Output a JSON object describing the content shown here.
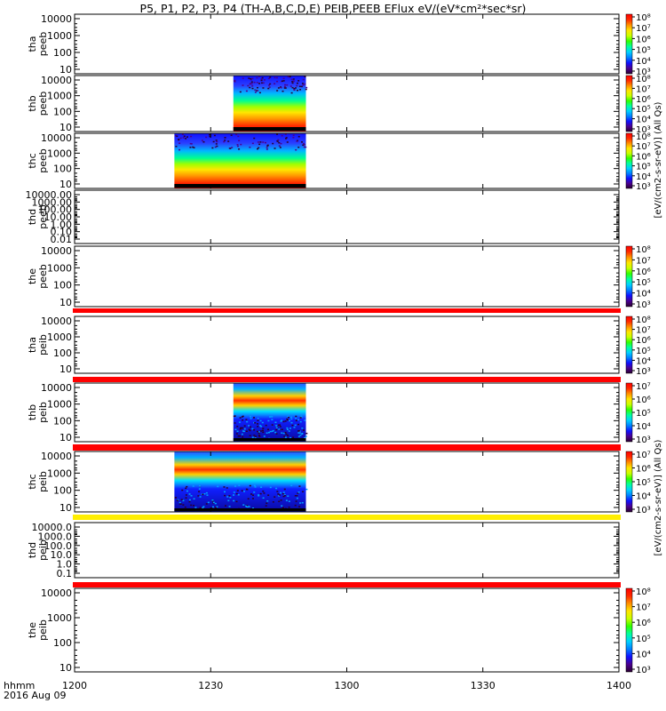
{
  "title": "P5, P1, P2, P3, P4 (TH-A,B,C,D,E) PEIB,PEEB EFlux eV/(eV*cm²*sec*sr)",
  "footer": {
    "time_label": "hhmm",
    "date": "2016 Aug 09"
  },
  "cbar_label_upper": "[eV/(cm2-s-sr-eV)] (All Qs)",
  "cbar_label_lower": "[eV/(cm2-s-sr-eV)] (All Qs)",
  "chart_data": {
    "type": "heatmap",
    "x_axis": {
      "ticks": [
        "1200",
        "1230",
        "1300",
        "1330",
        "1400"
      ],
      "range": [
        "12:00",
        "14:00"
      ]
    },
    "colormap": [
      "#2a0030",
      "#4a0090",
      "#1010ff",
      "#0080ff",
      "#00d0ff",
      "#00ffa0",
      "#30ff00",
      "#c8ff00",
      "#ffe600",
      "#ff9000",
      "#ff2a00",
      "#ff0000"
    ],
    "panels": [
      {
        "ylabel": [
          "tha",
          "peeb"
        ],
        "yticks": [
          "10000",
          "1000",
          "100",
          "10"
        ],
        "ylog": true,
        "cbar_ticks": [
          "10⁸",
          "10⁷",
          "10⁶",
          "10⁵",
          "10⁴",
          "10³"
        ],
        "data_blocks": [],
        "stripe_below": null
      },
      {
        "ylabel": [
          "thb",
          "peeb"
        ],
        "yticks": [
          "10000",
          "1000",
          "100",
          "10"
        ],
        "ylog": true,
        "cbar_ticks": [
          "10⁸",
          "10⁷",
          "10⁶",
          "10⁵",
          "10⁴",
          "10³"
        ],
        "data_blocks": [
          {
            "start": "12:35",
            "end": "12:51",
            "kind": "electron"
          }
        ],
        "stripe_below": null
      },
      {
        "ylabel": [
          "thc",
          "peeb"
        ],
        "yticks": [
          "10000",
          "1000",
          "100",
          "10"
        ],
        "ylog": true,
        "cbar_ticks": [
          "10⁸",
          "10⁷",
          "10⁶",
          "10⁵",
          "10⁴",
          "10³"
        ],
        "data_blocks": [
          {
            "start": "12:22",
            "end": "12:51",
            "kind": "electron"
          }
        ],
        "stripe_below": null
      },
      {
        "ylabel": [
          "thd",
          "peeb"
        ],
        "yticks": [
          "10000.00",
          "1000.00",
          "100.00",
          "10.00",
          "1.00",
          "0.10",
          "0.01"
        ],
        "ylog": true,
        "cbar_ticks": [],
        "data_blocks": [],
        "stripe_below": null
      },
      {
        "ylabel": [
          "the",
          "peeb"
        ],
        "yticks": [
          "10000",
          "1000",
          "100",
          "10"
        ],
        "ylog": true,
        "cbar_ticks": [
          "10⁸",
          "10⁷",
          "10⁶",
          "10⁵",
          "10⁴",
          "10³"
        ],
        "data_blocks": [],
        "stripe_below": "#ff0000"
      },
      {
        "ylabel": [
          "tha",
          "peib"
        ],
        "yticks": [
          "10000",
          "1000",
          "100",
          "10"
        ],
        "ylog": true,
        "cbar_ticks": [
          "10⁸",
          "10⁷",
          "10⁶",
          "10⁵",
          "10⁴",
          "10³"
        ],
        "data_blocks": [],
        "stripe_below": "#ff0000"
      },
      {
        "ylabel": [
          "thb",
          "peib"
        ],
        "yticks": [
          "10000",
          "1000",
          "100",
          "10"
        ],
        "ylog": true,
        "cbar_ticks": [
          "10⁷",
          "10⁶",
          "10⁵",
          "10⁴",
          "10³"
        ],
        "data_blocks": [
          {
            "start": "12:35",
            "end": "12:51",
            "kind": "ion"
          }
        ],
        "stripe_below": "#ff0000"
      },
      {
        "ylabel": [
          "thc",
          "peib"
        ],
        "yticks": [
          "10000",
          "1000",
          "100",
          "10"
        ],
        "ylog": true,
        "cbar_ticks": [
          "10⁷",
          "10⁶",
          "10⁵",
          "10⁴",
          "10³"
        ],
        "data_blocks": [
          {
            "start": "12:22",
            "end": "12:51",
            "kind": "ion"
          }
        ],
        "stripe_below": "#ffee00"
      },
      {
        "ylabel": [
          "thd",
          "peib"
        ],
        "yticks": [
          "10000.0",
          "1000.0",
          "100.0",
          "10.0",
          "1.0",
          "0.1"
        ],
        "ylog": true,
        "cbar_ticks": [],
        "data_blocks": [],
        "stripe_below": "#ff0000"
      },
      {
        "ylabel": [
          "the",
          "peib"
        ],
        "yticks": [
          "10000",
          "1000",
          "100",
          "10"
        ],
        "ylog": true,
        "cbar_ticks": [
          "10⁸",
          "10⁷",
          "10⁶",
          "10⁵",
          "10⁴",
          "10³"
        ],
        "data_blocks": [],
        "stripe_below": null
      }
    ]
  }
}
